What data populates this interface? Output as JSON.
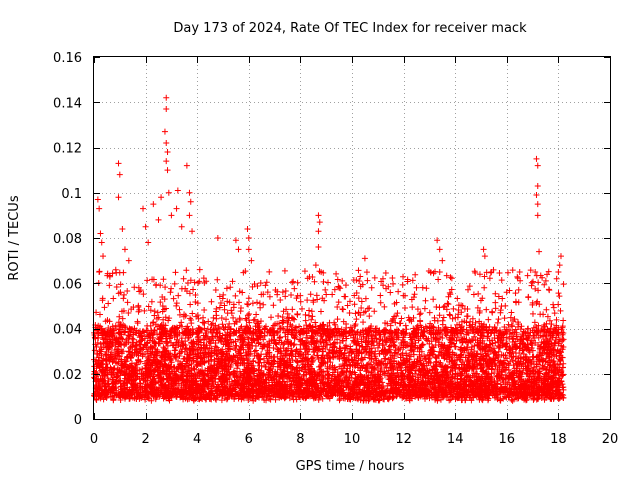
{
  "chart_data": {
    "type": "scatter",
    "title": "Day 173 of 2024, Rate Of TEC Index for receiver mack",
    "xlabel": "GPS time / hours",
    "ylabel": "ROTI / TECUs",
    "xlim": [
      0,
      20
    ],
    "ylim": [
      0,
      0.16
    ],
    "x_ticks": [
      "0",
      "2",
      "4",
      "6",
      "8",
      "10",
      "12",
      "14",
      "16",
      "18",
      "20"
    ],
    "y_ticks": [
      "0",
      "0.02",
      "0.04",
      "0.06",
      "0.08",
      "0.1",
      "0.12",
      "0.14",
      "0.16"
    ],
    "grid": true,
    "marker": "plus",
    "color": "#ff0000",
    "data_x_range": [
      0,
      18.2
    ],
    "baseline_band": [
      0.008,
      0.038
    ],
    "outliers": [
      {
        "x": 0.15,
        "y": 0.097
      },
      {
        "x": 0.2,
        "y": 0.093
      },
      {
        "x": 0.25,
        "y": 0.082
      },
      {
        "x": 0.3,
        "y": 0.078
      },
      {
        "x": 0.35,
        "y": 0.072
      },
      {
        "x": 0.2,
        "y": 0.065
      },
      {
        "x": 0.95,
        "y": 0.113
      },
      {
        "x": 1.0,
        "y": 0.108
      },
      {
        "x": 0.95,
        "y": 0.098
      },
      {
        "x": 1.1,
        "y": 0.084
      },
      {
        "x": 1.2,
        "y": 0.075
      },
      {
        "x": 1.35,
        "y": 0.07
      },
      {
        "x": 1.9,
        "y": 0.093
      },
      {
        "x": 2.0,
        "y": 0.085
      },
      {
        "x": 2.1,
        "y": 0.078
      },
      {
        "x": 2.3,
        "y": 0.095
      },
      {
        "x": 2.5,
        "y": 0.088
      },
      {
        "x": 2.6,
        "y": 0.098
      },
      {
        "x": 2.8,
        "y": 0.142
      },
      {
        "x": 2.8,
        "y": 0.137
      },
      {
        "x": 2.75,
        "y": 0.127
      },
      {
        "x": 2.8,
        "y": 0.122
      },
      {
        "x": 2.85,
        "y": 0.118
      },
      {
        "x": 2.8,
        "y": 0.114
      },
      {
        "x": 2.85,
        "y": 0.11
      },
      {
        "x": 2.9,
        "y": 0.1
      },
      {
        "x": 3.0,
        "y": 0.09
      },
      {
        "x": 3.25,
        "y": 0.101
      },
      {
        "x": 3.2,
        "y": 0.093
      },
      {
        "x": 3.4,
        "y": 0.085
      },
      {
        "x": 3.6,
        "y": 0.112
      },
      {
        "x": 3.7,
        "y": 0.1
      },
      {
        "x": 3.75,
        "y": 0.096
      },
      {
        "x": 3.7,
        "y": 0.09
      },
      {
        "x": 3.8,
        "y": 0.083
      },
      {
        "x": 4.1,
        "y": 0.066
      },
      {
        "x": 4.8,
        "y": 0.08
      },
      {
        "x": 5.5,
        "y": 0.079
      },
      {
        "x": 5.6,
        "y": 0.075
      },
      {
        "x": 5.95,
        "y": 0.084
      },
      {
        "x": 6.0,
        "y": 0.08
      },
      {
        "x": 6.0,
        "y": 0.075
      },
      {
        "x": 6.1,
        "y": 0.07
      },
      {
        "x": 7.1,
        "y": 0.055
      },
      {
        "x": 8.7,
        "y": 0.09
      },
      {
        "x": 8.75,
        "y": 0.087
      },
      {
        "x": 8.7,
        "y": 0.083
      },
      {
        "x": 8.7,
        "y": 0.076
      },
      {
        "x": 8.6,
        "y": 0.068
      },
      {
        "x": 9.5,
        "y": 0.058
      },
      {
        "x": 10.5,
        "y": 0.071
      },
      {
        "x": 11.2,
        "y": 0.062
      },
      {
        "x": 12.5,
        "y": 0.058
      },
      {
        "x": 13.3,
        "y": 0.079
      },
      {
        "x": 13.4,
        "y": 0.075
      },
      {
        "x": 13.5,
        "y": 0.07
      },
      {
        "x": 13.4,
        "y": 0.065
      },
      {
        "x": 15.1,
        "y": 0.075
      },
      {
        "x": 15.15,
        "y": 0.072
      },
      {
        "x": 15.4,
        "y": 0.065
      },
      {
        "x": 16.5,
        "y": 0.065
      },
      {
        "x": 17.15,
        "y": 0.115
      },
      {
        "x": 17.2,
        "y": 0.112
      },
      {
        "x": 17.2,
        "y": 0.103
      },
      {
        "x": 17.15,
        "y": 0.099
      },
      {
        "x": 17.2,
        "y": 0.095
      },
      {
        "x": 17.2,
        "y": 0.09
      },
      {
        "x": 17.25,
        "y": 0.074
      },
      {
        "x": 17.1,
        "y": 0.065
      },
      {
        "x": 18.1,
        "y": 0.072
      },
      {
        "x": 18.05,
        "y": 0.068
      },
      {
        "x": 18.0,
        "y": 0.065
      }
    ]
  }
}
